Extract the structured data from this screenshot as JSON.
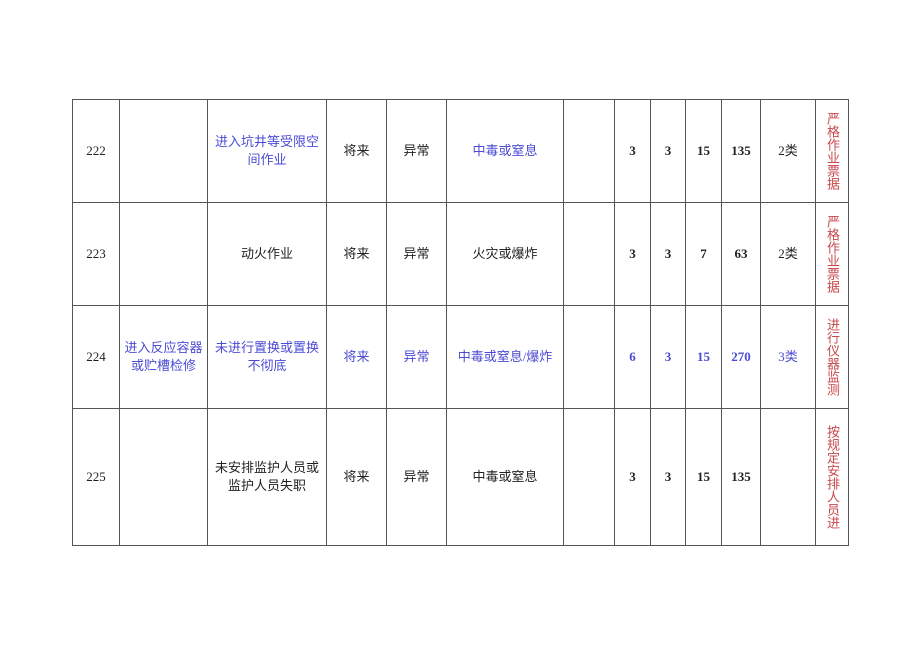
{
  "table": {
    "rows": [
      [
        "222",
        null,
        "进入坑井等受限空间作业",
        "将来",
        "异常",
        "中毒或窒息",
        null,
        3,
        3,
        15,
        135,
        "2类",
        "严格作业票据"
      ],
      [
        "223",
        null,
        "动火作业",
        "将来",
        "异常",
        "火灾或爆炸",
        null,
        3,
        3,
        7,
        63,
        "2类",
        "严格作业票据"
      ],
      [
        "224",
        "进入反应容器或贮槽检修",
        "未进行置换或置换不彻底",
        "将来",
        "异常",
        "中毒或窒息/爆炸",
        null,
        6,
        3,
        15,
        270,
        "3类",
        "进行仪器监测"
      ],
      [
        "225",
        null,
        "未安排监护人员或监护人员失职",
        "将来",
        "异常",
        "中毒或窒息",
        null,
        3,
        3,
        15,
        135,
        null,
        "按规定安排人员进"
      ]
    ]
  }
}
